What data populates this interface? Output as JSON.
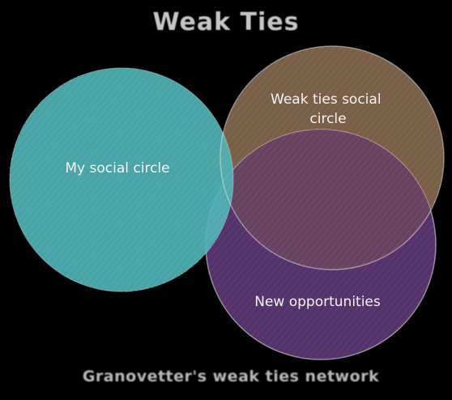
{
  "diagram": {
    "title": "Weak Ties",
    "caption": "Granovetter's weak ties network",
    "sets": [
      {
        "id": "my-social-circle",
        "label_lines": [
          "My social circle"
        ],
        "color": "#4fb3b5"
      },
      {
        "id": "weak-ties-social-circle",
        "label_lines": [
          "Weak ties social",
          "circle"
        ],
        "color": "#7a5e46"
      },
      {
        "id": "new-opportunities",
        "label_lines": [
          "New opportunities"
        ],
        "color": "#55306a"
      }
    ],
    "outline_color": "#e8e8e8"
  }
}
